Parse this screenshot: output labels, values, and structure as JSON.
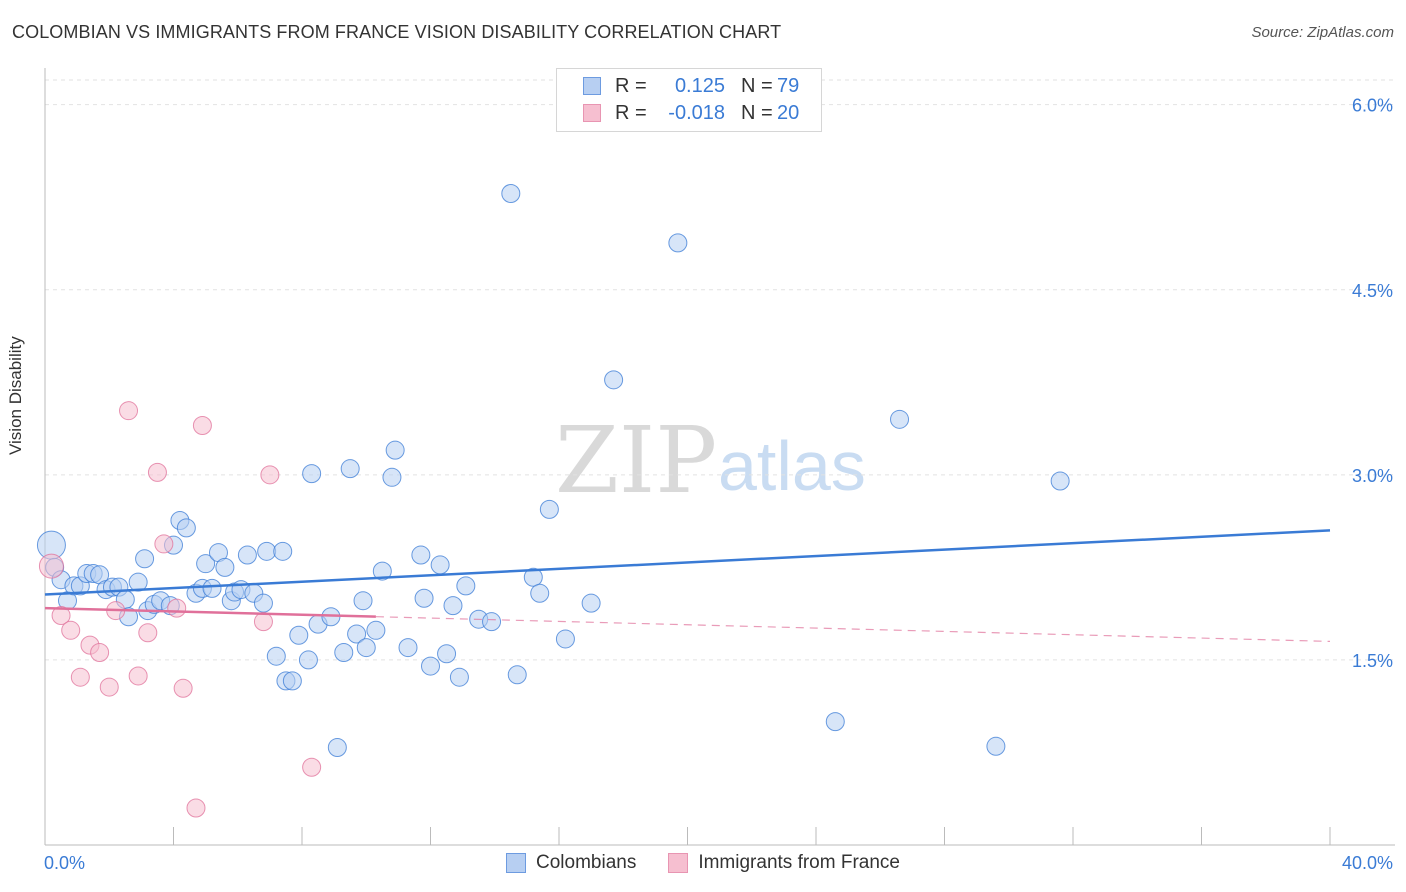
{
  "chart_data": {
    "type": "scatter",
    "title": "COLOMBIAN VS IMMIGRANTS FROM FRANCE VISION DISABILITY CORRELATION CHART",
    "source": "Source: ZipAtlas.com",
    "xlabel": "",
    "ylabel": "Vision Disability",
    "xlim": [
      0,
      40
    ],
    "ylim": [
      0,
      6.2
    ],
    "x_tick_labels": {
      "left": "0.0%",
      "right": "40.0%"
    },
    "y_ticks": [
      {
        "value": 1.5,
        "label": "1.5%"
      },
      {
        "value": 3.0,
        "label": "3.0%"
      },
      {
        "value": 4.5,
        "label": "4.5%"
      },
      {
        "value": 6.0,
        "label": "6.0%"
      }
    ],
    "watermark": {
      "part1": "ZIP",
      "part2": "atlas"
    },
    "legend": {
      "rows": [
        {
          "r_label": "R =",
          "r_value": "0.125",
          "n_label": "N =",
          "n_value": "79"
        },
        {
          "r_label": "R =",
          "r_value": "-0.018",
          "n_label": "N =",
          "n_value": "20"
        }
      ]
    },
    "series": [
      {
        "name": "Colombians",
        "color": "#3a7bd5",
        "fill": "#b7cff2",
        "trend": {
          "x0": 0,
          "y0": 2.03,
          "x1": 40,
          "y1": 2.55,
          "solid_to": 40
        },
        "points": [
          [
            0.2,
            2.43,
            14
          ],
          [
            0.3,
            2.25,
            9
          ],
          [
            0.5,
            2.15,
            9
          ],
          [
            0.7,
            1.98,
            9
          ],
          [
            0.9,
            2.1,
            9
          ],
          [
            1.1,
            2.1,
            9
          ],
          [
            1.3,
            2.2,
            9
          ],
          [
            1.5,
            2.2,
            9
          ],
          [
            1.7,
            2.19,
            9
          ],
          [
            1.9,
            2.07,
            9
          ],
          [
            2.1,
            2.09,
            9
          ],
          [
            2.3,
            2.09,
            9
          ],
          [
            2.5,
            1.99,
            9
          ],
          [
            2.6,
            1.85,
            9
          ],
          [
            2.9,
            2.13,
            9
          ],
          [
            3.1,
            2.32,
            9
          ],
          [
            3.2,
            1.9,
            9
          ],
          [
            3.4,
            1.95,
            9
          ],
          [
            3.6,
            1.98,
            9
          ],
          [
            3.9,
            1.94,
            9
          ],
          [
            4.0,
            2.43,
            9
          ],
          [
            4.2,
            2.63,
            9
          ],
          [
            4.4,
            2.57,
            9
          ],
          [
            4.7,
            2.04,
            9
          ],
          [
            4.9,
            2.08,
            9
          ],
          [
            5.0,
            2.28,
            9
          ],
          [
            5.2,
            2.08,
            9
          ],
          [
            5.4,
            2.37,
            9
          ],
          [
            5.6,
            2.25,
            9
          ],
          [
            5.8,
            1.98,
            9
          ],
          [
            5.9,
            2.05,
            9
          ],
          [
            6.1,
            2.07,
            9
          ],
          [
            6.3,
            2.35,
            9
          ],
          [
            6.5,
            2.04,
            9
          ],
          [
            6.8,
            1.96,
            9
          ],
          [
            6.9,
            2.38,
            9
          ],
          [
            7.4,
            2.38,
            9
          ],
          [
            7.2,
            1.53,
            9
          ],
          [
            7.5,
            1.33,
            9
          ],
          [
            7.7,
            1.33,
            9
          ],
          [
            7.9,
            1.7,
            9
          ],
          [
            8.2,
            1.5,
            9
          ],
          [
            8.3,
            3.01,
            9
          ],
          [
            8.5,
            1.79,
            9
          ],
          [
            8.9,
            1.85,
            9
          ],
          [
            9.1,
            0.79,
            9
          ],
          [
            9.3,
            1.56,
            9
          ],
          [
            9.5,
            3.05,
            9
          ],
          [
            9.7,
            1.71,
            9
          ],
          [
            9.9,
            1.98,
            9
          ],
          [
            10.0,
            1.6,
            9
          ],
          [
            10.3,
            1.74,
            9
          ],
          [
            10.5,
            2.22,
            9
          ],
          [
            10.8,
            2.98,
            9
          ],
          [
            10.9,
            3.2,
            9
          ],
          [
            11.3,
            1.6,
            9
          ],
          [
            11.7,
            2.35,
            9
          ],
          [
            11.8,
            2.0,
            9
          ],
          [
            12.0,
            1.45,
            9
          ],
          [
            12.3,
            2.27,
            9
          ],
          [
            12.5,
            1.55,
            9
          ],
          [
            12.7,
            1.94,
            9
          ],
          [
            12.9,
            1.36,
            9
          ],
          [
            13.1,
            2.1,
            9
          ],
          [
            13.5,
            1.83,
            9
          ],
          [
            13.9,
            1.81,
            9
          ],
          [
            14.5,
            5.28,
            9
          ],
          [
            14.7,
            1.38,
            9
          ],
          [
            15.2,
            2.17,
            9
          ],
          [
            15.4,
            2.04,
            9
          ],
          [
            15.7,
            2.72,
            9
          ],
          [
            16.2,
            1.67,
            9
          ],
          [
            17.0,
            1.96,
            9
          ],
          [
            17.7,
            3.77,
            9
          ],
          [
            19.7,
            4.88,
            9
          ],
          [
            24.6,
            1.0,
            9
          ],
          [
            26.6,
            3.45,
            9
          ],
          [
            29.6,
            0.8,
            9
          ],
          [
            31.6,
            2.95,
            9
          ]
        ]
      },
      {
        "name": "Immigrants from France",
        "color": "#e0709a",
        "fill": "#f6bfd0",
        "trend": {
          "x0": 0,
          "y0": 1.92,
          "x1": 40,
          "y1": 1.65,
          "solid_to": 10.3
        },
        "points": [
          [
            0.2,
            2.26,
            12
          ],
          [
            0.5,
            1.86,
            9
          ],
          [
            0.8,
            1.74,
            9
          ],
          [
            1.1,
            1.36,
            9
          ],
          [
            1.4,
            1.62,
            9
          ],
          [
            1.7,
            1.56,
            9
          ],
          [
            2.0,
            1.28,
            9
          ],
          [
            2.2,
            1.9,
            9
          ],
          [
            2.6,
            3.52,
            9
          ],
          [
            2.9,
            1.37,
            9
          ],
          [
            3.2,
            1.72,
            9
          ],
          [
            3.5,
            3.02,
            9
          ],
          [
            3.7,
            2.44,
            9
          ],
          [
            4.1,
            1.92,
            9
          ],
          [
            4.3,
            1.27,
            9
          ],
          [
            4.7,
            0.3,
            9
          ],
          [
            4.9,
            3.4,
            9
          ],
          [
            6.8,
            1.81,
            9
          ],
          [
            7.0,
            3.0,
            9
          ],
          [
            8.3,
            0.63,
            9
          ]
        ]
      }
    ]
  },
  "legend_bottom": [
    {
      "label": "Colombians",
      "color": "#3a7bd5",
      "fill": "#b7cff2"
    },
    {
      "label": "Immigrants from France",
      "color": "#e0709a",
      "fill": "#f6bfd0"
    }
  ]
}
